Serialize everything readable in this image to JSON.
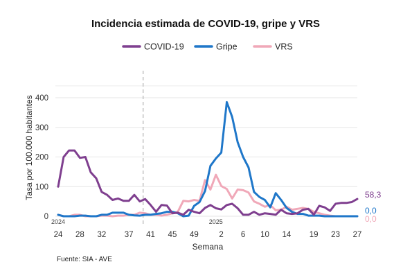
{
  "chart_data": {
    "type": "line",
    "title": "Incidencia estimada de COVID-19, gripe y VRS",
    "xlabel": "Semana",
    "ylabel": "Tasa por 100.000 habitantes",
    "ylim": [
      0,
      400
    ],
    "yticks": [
      "0",
      "100",
      "200",
      "300",
      "400"
    ],
    "xticks": [
      "24",
      "28",
      "32",
      "37",
      "41",
      "45",
      "49",
      "2",
      "6",
      "10",
      "14",
      "19",
      "23",
      "27"
    ],
    "xtick_positions": [
      0,
      4,
      8,
      13,
      17,
      21,
      25,
      30,
      34,
      38,
      42,
      47,
      51,
      55
    ],
    "year_labels": [
      {
        "text": "2024",
        "x": 0
      },
      {
        "text": "2025",
        "x": 29
      }
    ],
    "divider_x": 16,
    "legend_position": "top",
    "grid": true,
    "source": "Fuente: SIA - AVE",
    "series": [
      {
        "name": "COVID-19",
        "color": "#7f3f8f",
        "end_label": "58,3",
        "values": [
          100,
          200,
          222,
          222,
          197,
          200,
          148,
          128,
          82,
          72,
          55,
          60,
          52,
          52,
          72,
          50,
          58,
          38,
          15,
          38,
          36,
          10,
          12,
          5,
          22,
          15,
          10,
          28,
          38,
          27,
          23,
          38,
          42,
          27,
          5,
          5,
          15,
          5,
          10,
          8,
          5,
          22,
          10,
          8,
          10,
          22,
          25,
          5,
          35,
          30,
          18,
          42,
          45,
          45,
          48,
          58.3
        ]
      },
      {
        "name": "Gripe",
        "color": "#1f77c9",
        "end_label": "0,0",
        "values": [
          5,
          0,
          0,
          0,
          2,
          2,
          0,
          0,
          5,
          5,
          12,
          12,
          12,
          5,
          3,
          2,
          5,
          5,
          8,
          10,
          15,
          15,
          10,
          0,
          2,
          35,
          48,
          85,
          170,
          195,
          215,
          385,
          335,
          250,
          200,
          165,
          82,
          65,
          55,
          30,
          78,
          55,
          28,
          15,
          8,
          8,
          2,
          2,
          2,
          0,
          0,
          0,
          0,
          0,
          0,
          0
        ]
      },
      {
        "name": "VRS",
        "color": "#f0a8b8",
        "end_label": "0,0",
        "values": [
          5,
          0,
          0,
          5,
          5,
          0,
          0,
          0,
          2,
          2,
          0,
          2,
          2,
          5,
          5,
          12,
          10,
          5,
          5,
          2,
          5,
          10,
          15,
          52,
          50,
          55,
          52,
          122,
          90,
          140,
          102,
          92,
          60,
          90,
          88,
          80,
          50,
          42,
          32,
          38,
          20,
          22,
          32,
          22,
          25,
          28,
          25,
          15,
          10,
          5,
          2,
          0,
          0,
          0,
          0,
          0
        ]
      }
    ]
  }
}
